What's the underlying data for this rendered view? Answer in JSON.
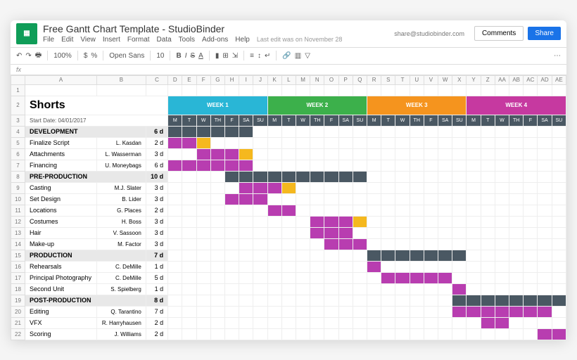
{
  "app": {
    "doc_title": "Free Gantt Chart Template - StudioBinder",
    "user_email": "share@studiobinder.com",
    "comments_label": "Comments",
    "share_label": "Share",
    "last_edit": "Last edit was on November 28",
    "menu": [
      "File",
      "Edit",
      "View",
      "Insert",
      "Format",
      "Data",
      "Tools",
      "Add-ons",
      "Help"
    ],
    "toolbar": {
      "zoom": "100%",
      "currency": "$",
      "percent": "%",
      "font": "Open Sans",
      "size": "10"
    }
  },
  "fx": "fx",
  "columns": [
    "A",
    "B",
    "C",
    "D",
    "E",
    "F",
    "G",
    "H",
    "I",
    "J",
    "K",
    "L",
    "M",
    "N",
    "O",
    "P",
    "Q",
    "R",
    "S",
    "T",
    "U",
    "V",
    "W",
    "X",
    "Y",
    "Z",
    "AA",
    "AB",
    "AC",
    "AD",
    "AE"
  ],
  "chart": {
    "project_title": "Shorts",
    "start_date_label": "Start Date: 04/01/2017",
    "weeks": [
      {
        "label": "WEEK 1",
        "color": "#29b6d6"
      },
      {
        "label": "WEEK 2",
        "color": "#3cb04b"
      },
      {
        "label": "WEEK 3",
        "color": "#f5941e"
      },
      {
        "label": "WEEK 4",
        "color": "#c639a0"
      }
    ],
    "days": [
      "M",
      "T",
      "W",
      "TH",
      "F",
      "SA",
      "SU"
    ],
    "day_hdr_bg": "#4a5863",
    "phase_bar_color": "#4a5863",
    "task_bar_color": "#b83db0",
    "milestone_color": "#f5b81e",
    "rows": [
      {
        "n": 4,
        "type": "phase",
        "name": "DEVELOPMENT",
        "dur": "6 d",
        "bar": [
          0,
          5
        ]
      },
      {
        "n": 5,
        "type": "task",
        "name": "Finalize Script",
        "owner": "L. Kasdan",
        "dur": "2 d",
        "bar": [
          0,
          1
        ],
        "ms": [
          2
        ]
      },
      {
        "n": 6,
        "type": "task",
        "name": "Attachments",
        "owner": "L. Wasserman",
        "dur": "3 d",
        "bar": [
          2,
          4
        ],
        "ms": [
          5
        ]
      },
      {
        "n": 7,
        "type": "task",
        "name": "Financing",
        "owner": "U. Moneybags",
        "dur": "6 d",
        "bar": [
          0,
          5
        ]
      },
      {
        "n": 8,
        "type": "phase",
        "name": "PRE-PRODUCTION",
        "dur": "10 d",
        "bar": [
          4,
          13
        ]
      },
      {
        "n": 9,
        "type": "task",
        "name": "Casting",
        "owner": "M.J. Slater",
        "dur": "3 d",
        "bar": [
          5,
          7
        ],
        "ms": [
          8
        ]
      },
      {
        "n": 10,
        "type": "task",
        "name": "Set Design",
        "owner": "B. Lider",
        "dur": "3 d",
        "bar": [
          4,
          6
        ]
      },
      {
        "n": 11,
        "type": "task",
        "name": "Locations",
        "owner": "G. Places",
        "dur": "2 d",
        "bar": [
          7,
          8
        ]
      },
      {
        "n": 12,
        "type": "task",
        "name": "Costumes",
        "owner": "H. Boss",
        "dur": "3 d",
        "bar": [
          10,
          12
        ],
        "ms": [
          13
        ]
      },
      {
        "n": 13,
        "type": "task",
        "name": "Hair",
        "owner": "V. Sassoon",
        "dur": "3 d",
        "bar": [
          10,
          12
        ]
      },
      {
        "n": 14,
        "type": "task",
        "name": "Make-up",
        "owner": "M. Factor",
        "dur": "3 d",
        "bar": [
          11,
          13
        ]
      },
      {
        "n": 15,
        "type": "phase",
        "name": "PRODUCTION",
        "dur": "7 d",
        "bar": [
          14,
          20
        ]
      },
      {
        "n": 16,
        "type": "task",
        "name": "Rehearsals",
        "owner": "C. DeMille",
        "dur": "1 d",
        "bar": [
          14,
          14
        ]
      },
      {
        "n": 17,
        "type": "task",
        "name": "Principal Photography",
        "owner": "C. DeMille",
        "dur": "5 d",
        "bar": [
          15,
          19
        ]
      },
      {
        "n": 18,
        "type": "task",
        "name": "Second Unit",
        "owner": "S. Spielberg",
        "dur": "1 d",
        "bar": [
          20,
          20
        ]
      },
      {
        "n": 19,
        "type": "phase",
        "name": "POST-PRODUCTION",
        "dur": "8 d",
        "bar": [
          20,
          27
        ]
      },
      {
        "n": 20,
        "type": "task",
        "name": "Editing",
        "owner": "Q. Tarantino",
        "dur": "7 d",
        "bar": [
          20,
          26
        ]
      },
      {
        "n": 21,
        "type": "task",
        "name": "VFX",
        "owner": "R. Harryhausen",
        "dur": "2 d",
        "bar": [
          22,
          23
        ]
      },
      {
        "n": 22,
        "type": "task",
        "name": "Scoring",
        "owner": "J. Williams",
        "dur": "2 d",
        "bar": [
          26,
          27
        ]
      }
    ]
  }
}
